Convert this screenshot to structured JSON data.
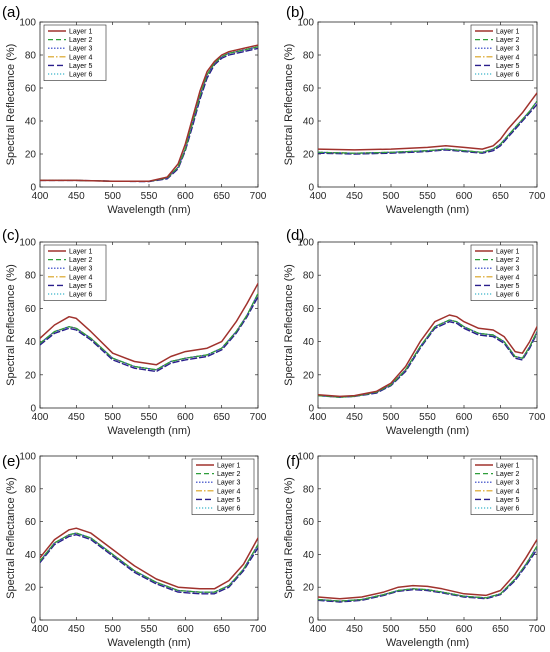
{
  "figure": {
    "series_styles": [
      {
        "name": "Layer 1",
        "color": "#a0322d",
        "dash": "none",
        "width": 1.5
      },
      {
        "name": "Layer 2",
        "color": "#2e9e3a",
        "dash": "5,3",
        "width": 1.2
      },
      {
        "name": "Layer 3",
        "color": "#2b3fc4",
        "dash": "1.5,1.5",
        "width": 1.2
      },
      {
        "name": "Layer 4",
        "color": "#d9a01c",
        "dash": "6,2,1.5,2",
        "width": 1.2
      },
      {
        "name": "Layer 5",
        "color": "#2a1f8c",
        "dash": "6,3",
        "width": 1.4
      },
      {
        "name": "Layer 6",
        "color": "#3bb3c9",
        "dash": "1.2,1.8",
        "width": 1.2
      }
    ]
  },
  "chart_data": [
    {
      "panel_label": "(a)",
      "type": "line",
      "xlabel": "Wavelength (nm)",
      "ylabel": "Spectral Reflectance (%)",
      "xlim": [
        400,
        700
      ],
      "ylim": [
        0,
        100
      ],
      "xticks": [
        400,
        450,
        500,
        550,
        600,
        650,
        700
      ],
      "yticks": [
        0,
        20,
        40,
        60,
        80,
        100
      ],
      "grid": false,
      "legend_position": "top-left",
      "x": [
        400,
        450,
        500,
        550,
        575,
        590,
        600,
        610,
        620,
        630,
        640,
        650,
        660,
        680,
        700
      ],
      "series": [
        {
          "name": "Layer 1",
          "values": [
            4,
            4,
            3.5,
            3.5,
            6,
            14,
            26,
            42,
            58,
            70,
            76,
            80,
            82,
            84,
            86
          ]
        },
        {
          "name": "Layer 2",
          "values": [
            4,
            4,
            3.5,
            3.4,
            5.5,
            12,
            23,
            39,
            55,
            68,
            75,
            79,
            81,
            83,
            85
          ]
        },
        {
          "name": "Layer 3",
          "values": [
            4,
            4,
            3.5,
            3.4,
            5.5,
            12,
            23,
            39,
            55,
            68,
            75,
            79,
            81,
            83,
            85
          ]
        },
        {
          "name": "Layer 4",
          "values": [
            4,
            4,
            3.5,
            3.4,
            5.5,
            12,
            23,
            39,
            55,
            68,
            75,
            79,
            81,
            83,
            85
          ]
        },
        {
          "name": "Layer 5",
          "values": [
            4,
            4,
            3.5,
            3.3,
            5,
            11,
            22,
            37,
            53,
            66,
            74,
            78,
            80,
            82,
            84
          ]
        },
        {
          "name": "Layer 6",
          "values": [
            4,
            4,
            3.5,
            3.4,
            5.5,
            12,
            23,
            39,
            55,
            68,
            75,
            79,
            81,
            83,
            85
          ]
        }
      ]
    },
    {
      "panel_label": "(b)",
      "type": "line",
      "xlabel": "Wavelength (nm)",
      "ylabel": "Spectral Reflectance (%)",
      "xlim": [
        400,
        700
      ],
      "ylim": [
        0,
        100
      ],
      "xticks": [
        400,
        450,
        500,
        550,
        600,
        650,
        700
      ],
      "yticks": [
        0,
        20,
        40,
        60,
        80,
        100
      ],
      "grid": false,
      "legend_position": "top-right",
      "x": [
        400,
        450,
        500,
        550,
        575,
        600,
        625,
        640,
        650,
        660,
        670,
        680,
        690,
        700
      ],
      "series": [
        {
          "name": "Layer 1",
          "values": [
            23,
            22.5,
            23,
            24,
            25,
            24,
            23,
            25,
            29,
            35,
            40,
            45,
            51,
            57
          ]
        },
        {
          "name": "Layer 2",
          "values": [
            21,
            20.5,
            21,
            22,
            23,
            22,
            21,
            23,
            26,
            31,
            36,
            41,
            46,
            52
          ]
        },
        {
          "name": "Layer 3",
          "values": [
            21,
            20.5,
            21,
            22,
            23,
            22,
            21,
            23,
            26,
            31,
            36,
            41,
            46,
            52
          ]
        },
        {
          "name": "Layer 4",
          "values": [
            21,
            20.5,
            21,
            22,
            23,
            22,
            21,
            23,
            26,
            31,
            36,
            41,
            46,
            52
          ]
        },
        {
          "name": "Layer 5",
          "values": [
            20.5,
            20,
            20.5,
            21.5,
            22.5,
            21.5,
            20.5,
            22,
            25,
            30,
            35,
            40,
            45,
            50
          ]
        },
        {
          "name": "Layer 6",
          "values": [
            21,
            20.5,
            21,
            22,
            23,
            22,
            21,
            23,
            26,
            31,
            36,
            41,
            46,
            52
          ]
        }
      ]
    },
    {
      "panel_label": "(c)",
      "type": "line",
      "xlabel": "Wavelength (nm)",
      "ylabel": "Spectral Reflectance (%)",
      "xlim": [
        400,
        700
      ],
      "ylim": [
        0,
        100
      ],
      "xticks": [
        400,
        450,
        500,
        550,
        600,
        650,
        700
      ],
      "yticks": [
        0,
        20,
        40,
        60,
        80,
        100
      ],
      "grid": false,
      "legend_position": "top-left",
      "x": [
        400,
        420,
        440,
        450,
        470,
        500,
        530,
        560,
        580,
        600,
        630,
        650,
        670,
        685,
        700
      ],
      "series": [
        {
          "name": "Layer 1",
          "values": [
            42,
            50,
            55,
            54,
            46,
            33,
            28,
            26,
            31,
            34,
            36,
            40,
            52,
            63,
            75
          ]
        },
        {
          "name": "Layer 2",
          "values": [
            39,
            46,
            49,
            48,
            42,
            30,
            25,
            23,
            28,
            30,
            32,
            36,
            46,
            56,
            69
          ]
        },
        {
          "name": "Layer 3",
          "values": [
            39,
            46,
            49,
            48,
            42,
            30,
            25,
            23,
            28,
            30,
            32,
            36,
            46,
            56,
            69
          ]
        },
        {
          "name": "Layer 4",
          "values": [
            39,
            46,
            49,
            48,
            42,
            30,
            25,
            23,
            28,
            30,
            32,
            36,
            46,
            56,
            69
          ]
        },
        {
          "name": "Layer 5",
          "values": [
            38,
            45,
            48,
            47,
            41,
            29,
            24,
            22,
            27,
            29,
            31,
            35,
            45,
            55,
            67
          ]
        },
        {
          "name": "Layer 6",
          "values": [
            39,
            46,
            49,
            48,
            42,
            30,
            25,
            23,
            28,
            30,
            32,
            36,
            46,
            56,
            69
          ]
        }
      ]
    },
    {
      "panel_label": "(d)",
      "type": "line",
      "xlabel": "Wavelength (nm)",
      "ylabel": "Spectral Reflectance (%)",
      "xlim": [
        400,
        700
      ],
      "ylim": [
        0,
        100
      ],
      "xticks": [
        400,
        450,
        500,
        550,
        600,
        650,
        700
      ],
      "yticks": [
        0,
        20,
        40,
        60,
        80,
        100
      ],
      "grid": false,
      "legend_position": "top-right",
      "x": [
        400,
        430,
        450,
        480,
        500,
        520,
        540,
        560,
        580,
        590,
        600,
        620,
        640,
        655,
        670,
        680,
        690,
        700
      ],
      "series": [
        {
          "name": "Layer 1",
          "values": [
            8,
            7,
            7.5,
            10,
            15,
            25,
            40,
            52,
            56,
            55,
            52,
            48,
            47,
            43,
            34,
            33,
            40,
            49
          ]
        },
        {
          "name": "Layer 2",
          "values": [
            7.5,
            6.5,
            7,
            9.5,
            14,
            23,
            37,
            49,
            53,
            52,
            49,
            45,
            44,
            40,
            31,
            30,
            37,
            46
          ]
        },
        {
          "name": "Layer 3",
          "values": [
            7.5,
            6.5,
            7,
            9.5,
            14,
            23,
            37,
            49,
            53,
            52,
            49,
            45,
            44,
            40,
            31,
            30,
            37,
            46
          ]
        },
        {
          "name": "Layer 4",
          "values": [
            7.5,
            6.5,
            7,
            9.5,
            14,
            23,
            37,
            49,
            53,
            52,
            49,
            45,
            44,
            40,
            31,
            30,
            37,
            46
          ]
        },
        {
          "name": "Layer 5",
          "values": [
            7.5,
            6.5,
            7,
            9,
            13.5,
            22,
            36,
            48,
            52,
            51,
            48,
            44,
            43,
            39,
            30,
            29,
            36,
            45
          ]
        },
        {
          "name": "Layer 6",
          "values": [
            7.5,
            6.5,
            7,
            9.5,
            14,
            23,
            37,
            49,
            53,
            52,
            49,
            45,
            44,
            40,
            31,
            30,
            37,
            46
          ]
        }
      ]
    },
    {
      "panel_label": "(e)",
      "type": "line",
      "xlabel": "Wavelength (nm)",
      "ylabel": "Spectral Reflectance (%)",
      "xlim": [
        400,
        700
      ],
      "ylim": [
        0,
        100
      ],
      "xticks": [
        400,
        450,
        500,
        550,
        600,
        650,
        700
      ],
      "yticks": [
        0,
        20,
        40,
        60,
        80,
        100
      ],
      "grid": false,
      "legend_position": "top-right",
      "x": [
        400,
        420,
        440,
        450,
        470,
        500,
        530,
        560,
        590,
        620,
        640,
        660,
        680,
        700
      ],
      "series": [
        {
          "name": "Layer 1",
          "values": [
            38,
            49,
            55,
            56,
            53,
            43,
            33,
            25,
            20,
            19,
            19,
            24,
            34,
            50
          ]
        },
        {
          "name": "Layer 2",
          "values": [
            36,
            47,
            52,
            53,
            50,
            40,
            30,
            23,
            18,
            17,
            17,
            21,
            31,
            46
          ]
        },
        {
          "name": "Layer 3",
          "values": [
            36,
            47,
            52,
            53,
            50,
            40,
            30,
            23,
            18,
            17,
            17,
            21,
            31,
            46
          ]
        },
        {
          "name": "Layer 4",
          "values": [
            36,
            47,
            52,
            53,
            50,
            40,
            30,
            23,
            18,
            17,
            17,
            21,
            31,
            46
          ]
        },
        {
          "name": "Layer 5",
          "values": [
            35,
            46,
            51,
            52,
            49,
            39,
            29,
            22,
            17,
            16,
            16,
            20,
            30,
            44
          ]
        },
        {
          "name": "Layer 6",
          "values": [
            36,
            47,
            52,
            53,
            50,
            40,
            30,
            23,
            18,
            17,
            17,
            21,
            31,
            46
          ]
        }
      ]
    },
    {
      "panel_label": "(f)",
      "type": "line",
      "xlabel": "Wavelength (nm)",
      "ylabel": "Spectral Reflectance (%)",
      "xlim": [
        400,
        700
      ],
      "ylim": [
        0,
        100
      ],
      "xticks": [
        400,
        450,
        500,
        550,
        600,
        650,
        700
      ],
      "yticks": [
        0,
        20,
        40,
        60,
        80,
        100
      ],
      "grid": false,
      "legend_position": "top-right",
      "x": [
        400,
        430,
        460,
        490,
        510,
        530,
        550,
        570,
        600,
        630,
        650,
        670,
        685,
        700
      ],
      "series": [
        {
          "name": "Layer 1",
          "values": [
            14,
            13,
            14,
            17,
            20,
            21,
            20.5,
            19,
            16,
            15,
            18,
            28,
            38,
            49
          ]
        },
        {
          "name": "Layer 2",
          "values": [
            12.5,
            11.5,
            12.5,
            15.5,
            18,
            19,
            18.5,
            17,
            14.5,
            13.5,
            16,
            25,
            34,
            45
          ]
        },
        {
          "name": "Layer 3",
          "values": [
            12.5,
            11.5,
            12.5,
            15.5,
            18,
            19,
            18.5,
            17,
            14.5,
            13.5,
            16,
            25,
            34,
            45
          ]
        },
        {
          "name": "Layer 4",
          "values": [
            12.5,
            11.5,
            12.5,
            15.5,
            18,
            19,
            18.5,
            17,
            14.5,
            13.5,
            16,
            25,
            34,
            45
          ]
        },
        {
          "name": "Layer 5",
          "values": [
            12,
            11,
            12,
            15,
            17.5,
            18.5,
            18,
            16.5,
            14,
            13,
            15.5,
            24,
            33,
            43
          ]
        },
        {
          "name": "Layer 6",
          "values": [
            12.5,
            11.5,
            12.5,
            15.5,
            18,
            19,
            18.5,
            17,
            14.5,
            13.5,
            16,
            25,
            34,
            45
          ]
        }
      ]
    }
  ]
}
